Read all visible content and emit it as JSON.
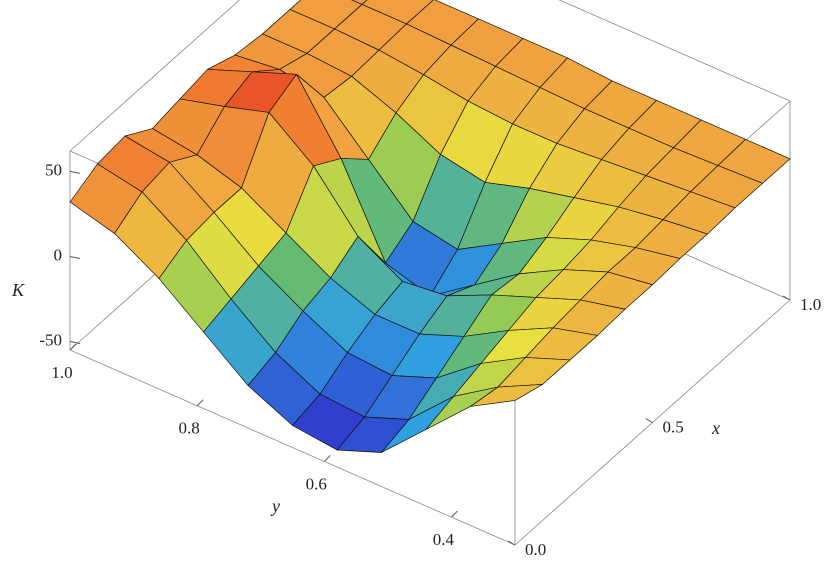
{
  "chart_data": {
    "type": "surface",
    "x_label": "x",
    "y_label": "y",
    "z_label": "K",
    "x": [
      0,
      0.1,
      0.2,
      0.3,
      0.4,
      0.5,
      0.6,
      0.7,
      0.8,
      0.9,
      1.0
    ],
    "y": [
      1.0,
      0.93,
      0.86,
      0.79,
      0.72,
      0.65,
      0.58,
      0.51,
      0.44,
      0.37,
      0.3
    ],
    "z": [
      [
        32,
        40,
        42,
        32,
        35,
        38,
        32,
        30,
        30,
        30,
        30
      ],
      [
        25,
        35,
        38,
        28,
        42,
        48,
        35,
        30,
        30,
        30,
        30
      ],
      [
        10,
        18,
        20,
        20,
        50,
        58,
        30,
        28,
        29,
        30,
        30
      ],
      [
        -10,
        -5,
        0,
        5,
        30,
        20,
        5,
        18,
        26,
        29,
        30
      ],
      [
        -30,
        -25,
        -15,
        -10,
        0,
        -30,
        -20,
        5,
        22,
        28,
        30
      ],
      [
        -42,
        -38,
        -28,
        -20,
        -15,
        -38,
        -25,
        0,
        20,
        27,
        30
      ],
      [
        -45,
        -40,
        -30,
        -20,
        -12,
        -20,
        -10,
        8,
        20,
        26,
        28
      ],
      [
        -35,
        -30,
        -20,
        -10,
        0,
        -2,
        5,
        14,
        22,
        26,
        28
      ],
      [
        -10,
        -5,
        0,
        5,
        10,
        12,
        15,
        20,
        24,
        26,
        28
      ],
      [
        15,
        12,
        15,
        18,
        20,
        22,
        22,
        24,
        26,
        27,
        28
      ],
      [
        30,
        25,
        25,
        25,
        26,
        26,
        27,
        27,
        28,
        28,
        28
      ]
    ],
    "xlim": [
      0,
      1
    ],
    "ylim": [
      0.3,
      1.0
    ],
    "zlim": [
      -55,
      62
    ],
    "xticks": [
      {
        "value": 0,
        "label": "0.0"
      },
      0.5,
      {
        "value": 1,
        "label": "1.0"
      }
    ],
    "yticks": [
      0.4,
      0.6,
      0.8,
      {
        "value": 1,
        "label": "1.0"
      }
    ],
    "zticks": [
      -50,
      0,
      50
    ],
    "mesh": true,
    "box": true
  }
}
